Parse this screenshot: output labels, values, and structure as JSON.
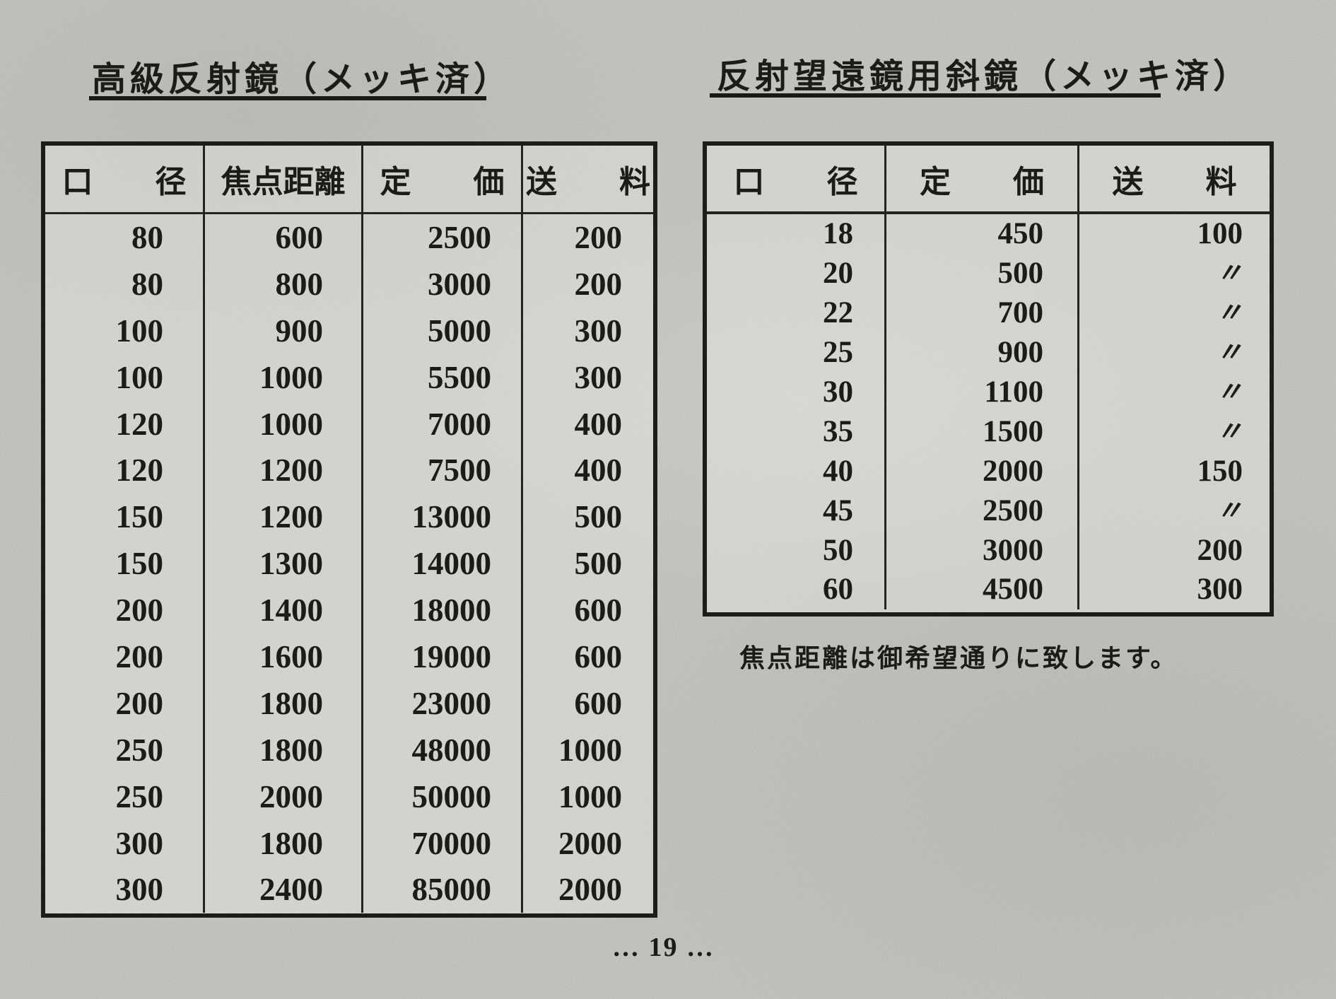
{
  "page": {
    "page_number": "… 19 …"
  },
  "left_table": {
    "title": "高級反射鏡（メッキ済）",
    "headers": [
      "口　　径",
      "焦点距離",
      "定　　価",
      "送　　料"
    ],
    "rows": [
      [
        "80",
        "600",
        "2500",
        "200"
      ],
      [
        "80",
        "800",
        "3000",
        "200"
      ],
      [
        "100",
        "900",
        "5000",
        "300"
      ],
      [
        "100",
        "1000",
        "5500",
        "300"
      ],
      [
        "120",
        "1000",
        "7000",
        "400"
      ],
      [
        "120",
        "1200",
        "7500",
        "400"
      ],
      [
        "150",
        "1200",
        "13000",
        "500"
      ],
      [
        "150",
        "1300",
        "14000",
        "500"
      ],
      [
        "200",
        "1400",
        "18000",
        "600"
      ],
      [
        "200",
        "1600",
        "19000",
        "600"
      ],
      [
        "200",
        "1800",
        "23000",
        "600"
      ],
      [
        "250",
        "1800",
        "48000",
        "1000"
      ],
      [
        "250",
        "2000",
        "50000",
        "1000"
      ],
      [
        "300",
        "1800",
        "70000",
        "2000"
      ],
      [
        "300",
        "2400",
        "85000",
        "2000"
      ]
    ]
  },
  "right_table": {
    "title": "反射望遠鏡用斜鏡（メッキ済）",
    "headers": [
      "口　　径",
      "定　　価",
      "送　　料"
    ],
    "rows": [
      [
        "18",
        "450",
        "100"
      ],
      [
        "20",
        "500",
        "〃"
      ],
      [
        "22",
        "700",
        "〃"
      ],
      [
        "25",
        "900",
        "〃"
      ],
      [
        "30",
        "1100",
        "〃"
      ],
      [
        "35",
        "1500",
        "〃"
      ],
      [
        "40",
        "2000",
        "150"
      ],
      [
        "45",
        "2500",
        "〃"
      ],
      [
        "50",
        "3000",
        "200"
      ],
      [
        "60",
        "4500",
        "300"
      ]
    ],
    "note": "焦点距離は御希望通りに致します。"
  }
}
